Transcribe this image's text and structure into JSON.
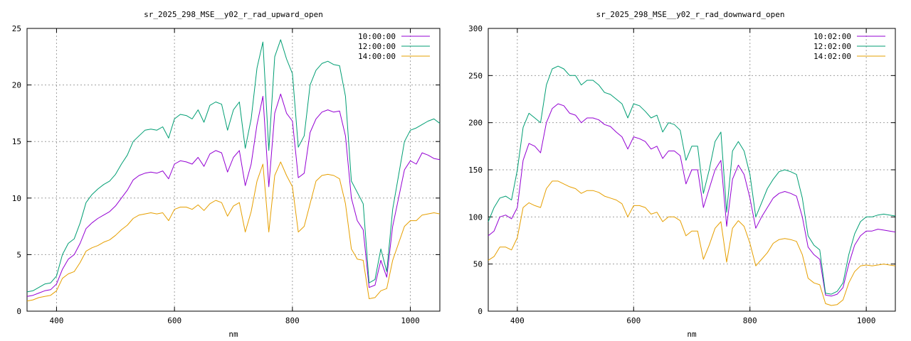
{
  "chart_data": [
    {
      "type": "line",
      "title": "sr_2025_298_MSE__y02_r_rad_upward_open",
      "xlabel": "nm",
      "ylabel": "",
      "xlim": [
        350,
        1050
      ],
      "ylim": [
        0,
        25
      ],
      "xticks": [
        400,
        600,
        800,
        1000
      ],
      "yticks": [
        0,
        5,
        10,
        15,
        20,
        25
      ],
      "grid": true,
      "legend_position": "top-right",
      "series": [
        {
          "name": "10:00:00",
          "color": "#9400d3",
          "x": [
            350,
            360,
            370,
            380,
            390,
            400,
            410,
            420,
            430,
            440,
            450,
            460,
            470,
            480,
            490,
            500,
            510,
            520,
            530,
            540,
            550,
            560,
            570,
            580,
            590,
            600,
            610,
            620,
            630,
            640,
            650,
            660,
            670,
            680,
            690,
            700,
            710,
            720,
            730,
            740,
            750,
            760,
            770,
            780,
            790,
            800,
            810,
            820,
            830,
            840,
            850,
            860,
            870,
            880,
            890,
            900,
            910,
            920,
            930,
            940,
            950,
            960,
            970,
            980,
            990,
            1000,
            1010,
            1020,
            1030,
            1040,
            1050
          ],
          "y": [
            1.3,
            1.4,
            1.6,
            1.8,
            1.9,
            2.4,
            3.7,
            4.6,
            5.0,
            6.0,
            7.3,
            7.8,
            8.2,
            8.5,
            8.8,
            9.3,
            10.0,
            10.7,
            11.6,
            12.0,
            12.2,
            12.3,
            12.2,
            12.4,
            11.7,
            13.0,
            13.3,
            13.2,
            13.0,
            13.6,
            12.8,
            13.9,
            14.2,
            14.0,
            12.3,
            13.6,
            14.2,
            11.1,
            13.0,
            16.5,
            19.0,
            11.0,
            17.5,
            19.2,
            17.5,
            16.8,
            11.8,
            12.2,
            15.8,
            17.0,
            17.6,
            17.8,
            17.6,
            17.7,
            15.5,
            10.0,
            8.0,
            7.2,
            2.1,
            2.3,
            4.5,
            3.0,
            7.5,
            10.0,
            12.5,
            13.3,
            13.0,
            14.0,
            13.8,
            13.5,
            13.4
          ]
        },
        {
          "name": "12:00:00",
          "color": "#009e73",
          "x": [
            350,
            360,
            370,
            380,
            390,
            400,
            410,
            420,
            430,
            440,
            450,
            460,
            470,
            480,
            490,
            500,
            510,
            520,
            530,
            540,
            550,
            560,
            570,
            580,
            590,
            600,
            610,
            620,
            630,
            640,
            650,
            660,
            670,
            680,
            690,
            700,
            710,
            720,
            730,
            740,
            750,
            760,
            770,
            780,
            790,
            800,
            810,
            820,
            830,
            840,
            850,
            860,
            870,
            880,
            890,
            900,
            910,
            920,
            930,
            940,
            950,
            960,
            970,
            980,
            990,
            1000,
            1010,
            1020,
            1030,
            1040,
            1050
          ],
          "y": [
            1.7,
            1.8,
            2.1,
            2.4,
            2.5,
            3.1,
            5.0,
            6.0,
            6.4,
            7.8,
            9.6,
            10.3,
            10.8,
            11.2,
            11.5,
            12.1,
            13.0,
            13.8,
            15.0,
            15.5,
            16.0,
            16.1,
            16.0,
            16.3,
            15.3,
            17.0,
            17.4,
            17.3,
            17.0,
            17.8,
            16.7,
            18.2,
            18.5,
            18.3,
            16.0,
            17.8,
            18.5,
            14.4,
            17.0,
            21.5,
            23.8,
            14.2,
            22.5,
            24.0,
            22.3,
            21.0,
            14.5,
            15.5,
            20.0,
            21.3,
            21.9,
            22.1,
            21.8,
            21.7,
            19.0,
            11.5,
            10.5,
            9.5,
            2.5,
            2.8,
            5.5,
            3.5,
            9.0,
            12.0,
            15.0,
            16.0,
            16.2,
            16.5,
            16.8,
            17.0,
            16.6
          ]
        },
        {
          "name": "14:00:00",
          "color": "#e69f00",
          "x": [
            350,
            360,
            370,
            380,
            390,
            400,
            410,
            420,
            430,
            440,
            450,
            460,
            470,
            480,
            490,
            500,
            510,
            520,
            530,
            540,
            550,
            560,
            570,
            580,
            590,
            600,
            610,
            620,
            630,
            640,
            650,
            660,
            670,
            680,
            690,
            700,
            710,
            720,
            730,
            740,
            750,
            760,
            770,
            780,
            790,
            800,
            810,
            820,
            830,
            840,
            850,
            860,
            870,
            880,
            890,
            900,
            910,
            920,
            930,
            940,
            950,
            960,
            970,
            980,
            990,
            1000,
            1010,
            1020,
            1030,
            1040,
            1050
          ],
          "y": [
            0.9,
            1.0,
            1.2,
            1.3,
            1.4,
            1.8,
            2.9,
            3.3,
            3.5,
            4.3,
            5.3,
            5.6,
            5.8,
            6.1,
            6.3,
            6.7,
            7.2,
            7.6,
            8.2,
            8.5,
            8.6,
            8.7,
            8.6,
            8.7,
            8.0,
            9.0,
            9.2,
            9.2,
            9.0,
            9.4,
            8.9,
            9.5,
            9.8,
            9.6,
            8.4,
            9.3,
            9.6,
            7.0,
            8.8,
            11.5,
            13.0,
            7.0,
            12.0,
            13.2,
            12.0,
            11.0,
            7.0,
            7.5,
            9.5,
            11.5,
            12.0,
            12.1,
            12.0,
            11.7,
            9.5,
            5.5,
            4.6,
            4.5,
            1.1,
            1.2,
            1.8,
            2.0,
            4.5,
            6.0,
            7.5,
            8.0,
            8.0,
            8.5,
            8.6,
            8.7,
            8.6
          ]
        }
      ]
    },
    {
      "type": "line",
      "title": "sr_2025_298_MSE__y02_r_rad_downward_open",
      "xlabel": "nm",
      "ylabel": "",
      "xlim": [
        350,
        1050
      ],
      "ylim": [
        0,
        300
      ],
      "xticks": [
        400,
        600,
        800,
        1000
      ],
      "yticks": [
        0,
        50,
        100,
        150,
        200,
        250,
        300
      ],
      "grid": true,
      "legend_position": "top-right",
      "series": [
        {
          "name": "10:02:00",
          "color": "#9400d3",
          "x": [
            350,
            360,
            370,
            380,
            390,
            400,
            410,
            420,
            430,
            440,
            450,
            460,
            470,
            480,
            490,
            500,
            510,
            520,
            530,
            540,
            550,
            560,
            570,
            580,
            590,
            600,
            610,
            620,
            630,
            640,
            650,
            660,
            670,
            680,
            690,
            700,
            710,
            720,
            730,
            740,
            750,
            760,
            770,
            780,
            790,
            800,
            810,
            820,
            830,
            840,
            850,
            860,
            870,
            880,
            890,
            900,
            910,
            920,
            930,
            940,
            950,
            960,
            970,
            980,
            990,
            1000,
            1010,
            1020,
            1030,
            1040,
            1050
          ],
          "y": [
            80,
            85,
            100,
            102,
            98,
            110,
            160,
            178,
            175,
            168,
            200,
            215,
            220,
            218,
            210,
            208,
            200,
            205,
            205,
            203,
            198,
            196,
            190,
            185,
            172,
            185,
            183,
            180,
            172,
            175,
            162,
            170,
            170,
            165,
            135,
            150,
            150,
            110,
            130,
            150,
            160,
            90,
            140,
            155,
            145,
            120,
            88,
            100,
            110,
            120,
            125,
            127,
            125,
            122,
            100,
            68,
            60,
            55,
            17,
            16,
            18,
            25,
            50,
            70,
            80,
            85,
            85,
            87,
            86,
            85,
            84
          ]
        },
        {
          "name": "12:02:00",
          "color": "#009e73",
          "x": [
            350,
            360,
            370,
            380,
            390,
            400,
            410,
            420,
            430,
            440,
            450,
            460,
            470,
            480,
            490,
            500,
            510,
            520,
            530,
            540,
            550,
            560,
            570,
            580,
            590,
            600,
            610,
            620,
            630,
            640,
            650,
            660,
            670,
            680,
            690,
            700,
            710,
            720,
            730,
            740,
            750,
            760,
            770,
            780,
            790,
            800,
            810,
            820,
            830,
            840,
            850,
            860,
            870,
            880,
            890,
            900,
            910,
            920,
            930,
            940,
            950,
            960,
            970,
            980,
            990,
            1000,
            1010,
            1020,
            1030,
            1040,
            1050
          ],
          "y": [
            95,
            110,
            120,
            122,
            118,
            150,
            195,
            210,
            205,
            200,
            240,
            257,
            260,
            257,
            250,
            250,
            240,
            245,
            245,
            240,
            232,
            230,
            225,
            220,
            205,
            220,
            218,
            212,
            205,
            208,
            190,
            200,
            198,
            192,
            160,
            175,
            175,
            125,
            150,
            180,
            190,
            105,
            170,
            180,
            170,
            145,
            100,
            115,
            130,
            140,
            148,
            150,
            148,
            145,
            120,
            80,
            70,
            65,
            19,
            18,
            21,
            30,
            60,
            82,
            95,
            100,
            100,
            102,
            103,
            102,
            101
          ]
        },
        {
          "name": "14:02:00",
          "color": "#e69f00",
          "x": [
            350,
            360,
            370,
            380,
            390,
            400,
            410,
            420,
            430,
            440,
            450,
            460,
            470,
            480,
            490,
            500,
            510,
            520,
            530,
            540,
            550,
            560,
            570,
            580,
            590,
            600,
            610,
            620,
            630,
            640,
            650,
            660,
            670,
            680,
            690,
            700,
            710,
            720,
            730,
            740,
            750,
            760,
            770,
            780,
            790,
            800,
            810,
            820,
            830,
            840,
            850,
            860,
            870,
            880,
            890,
            900,
            910,
            920,
            930,
            940,
            950,
            960,
            970,
            980,
            990,
            1000,
            1010,
            1020,
            1030,
            1040,
            1050
          ],
          "y": [
            54,
            58,
            68,
            68,
            65,
            78,
            110,
            115,
            112,
            110,
            130,
            138,
            138,
            135,
            132,
            130,
            125,
            128,
            128,
            126,
            122,
            120,
            118,
            114,
            100,
            112,
            112,
            110,
            103,
            105,
            95,
            100,
            100,
            96,
            80,
            85,
            85,
            55,
            70,
            88,
            95,
            52,
            88,
            96,
            90,
            72,
            48,
            55,
            62,
            72,
            76,
            77,
            76,
            74,
            60,
            35,
            30,
            28,
            8,
            6,
            7,
            12,
            30,
            42,
            48,
            49,
            48,
            49,
            50,
            49,
            48
          ]
        }
      ]
    }
  ]
}
